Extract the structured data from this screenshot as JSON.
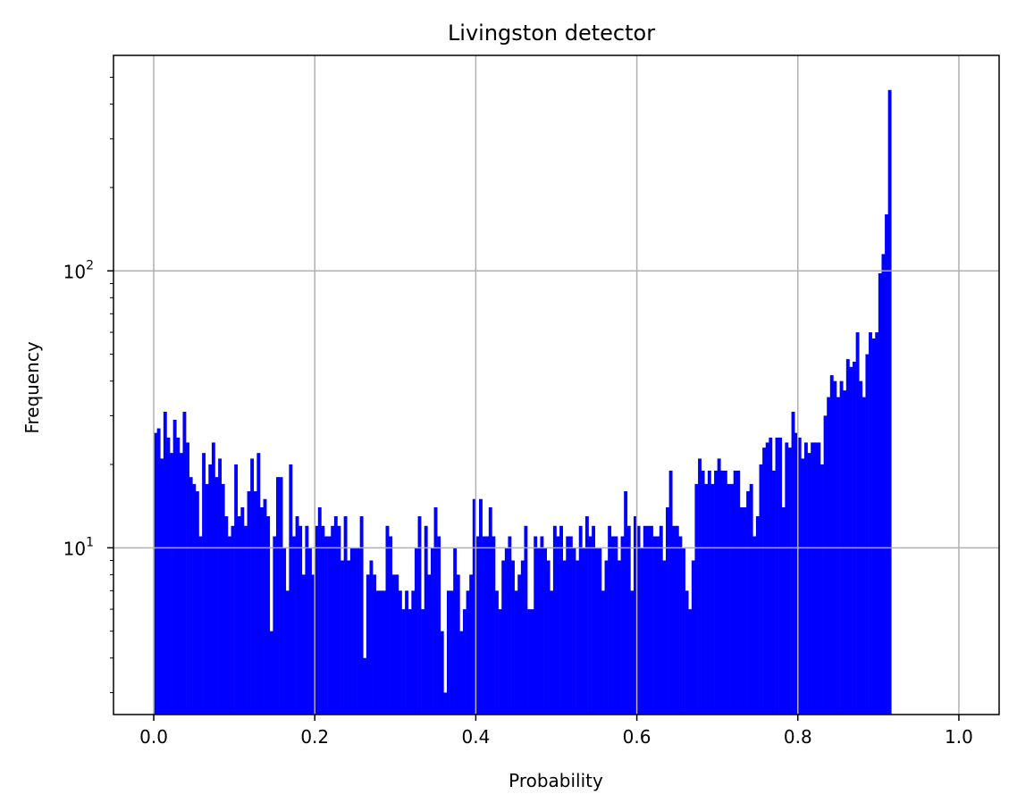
{
  "chart_data": {
    "type": "bar",
    "title": "Livingston detector",
    "xlabel": "Probability",
    "ylabel": "Frequency",
    "xlim": [
      -0.05,
      1.05
    ],
    "ylim": [
      2.5,
      600
    ],
    "yscale": "log",
    "grid": true,
    "bar_color": "#0000ff",
    "x_ticks": [
      0.0,
      0.2,
      0.4,
      0.6,
      0.8,
      1.0
    ],
    "x_tick_labels": [
      "0.0",
      "0.2",
      "0.4",
      "0.6",
      "0.8",
      "1.0"
    ],
    "y_ticks": [
      10,
      100
    ],
    "y_tick_labels": [
      "10",
      "100"
    ],
    "bin_start": 0.0,
    "bin_width": 0.004,
    "values": [
      26,
      27,
      21,
      31,
      25,
      22,
      29,
      25,
      22,
      31,
      24,
      18,
      17,
      16,
      11,
      22,
      17,
      20,
      24,
      18,
      21,
      17,
      13,
      11,
      12,
      20,
      13,
      14,
      12,
      16,
      21,
      16,
      22,
      14,
      15,
      13,
      5,
      11,
      18,
      18,
      10,
      7,
      20,
      11,
      13,
      12,
      8,
      12,
      10,
      8,
      12,
      14,
      12,
      11,
      11,
      12,
      13,
      12,
      9,
      13,
      9,
      10,
      10,
      10,
      13,
      4,
      8,
      9,
      8,
      7,
      7,
      7,
      12,
      11,
      8,
      8,
      7,
      6,
      7,
      6,
      7,
      10,
      13,
      6,
      12,
      8,
      10,
      14,
      11,
      5,
      3,
      7,
      7,
      10,
      8,
      5,
      6,
      7,
      8,
      15,
      11,
      15,
      11,
      11,
      14,
      11,
      7,
      6,
      9,
      10,
      11,
      9,
      7,
      8,
      9,
      12,
      6,
      6,
      11,
      10,
      11,
      10,
      9,
      7,
      12,
      11,
      12,
      9,
      11,
      11,
      10,
      9,
      12,
      10,
      13,
      11,
      12,
      10,
      10,
      7,
      9,
      12,
      11,
      11,
      9,
      11,
      16,
      12,
      7,
      13,
      12,
      10,
      12,
      12,
      12,
      11,
      11,
      12,
      9,
      14,
      19,
      12,
      12,
      11,
      10,
      7,
      6,
      9,
      17,
      21,
      19,
      17,
      19,
      17,
      19,
      21,
      19,
      19,
      17,
      17,
      19,
      19,
      14,
      14,
      16,
      17,
      11,
      13,
      20,
      23,
      24,
      25,
      19,
      25,
      25,
      14,
      24,
      23,
      31,
      26,
      25,
      21,
      24,
      22,
      24,
      24,
      24,
      20,
      30,
      35,
      42,
      40,
      35,
      40,
      37,
      48,
      45,
      47,
      60,
      40,
      35,
      50,
      60,
      57,
      60,
      98,
      115,
      160,
      450
    ]
  }
}
